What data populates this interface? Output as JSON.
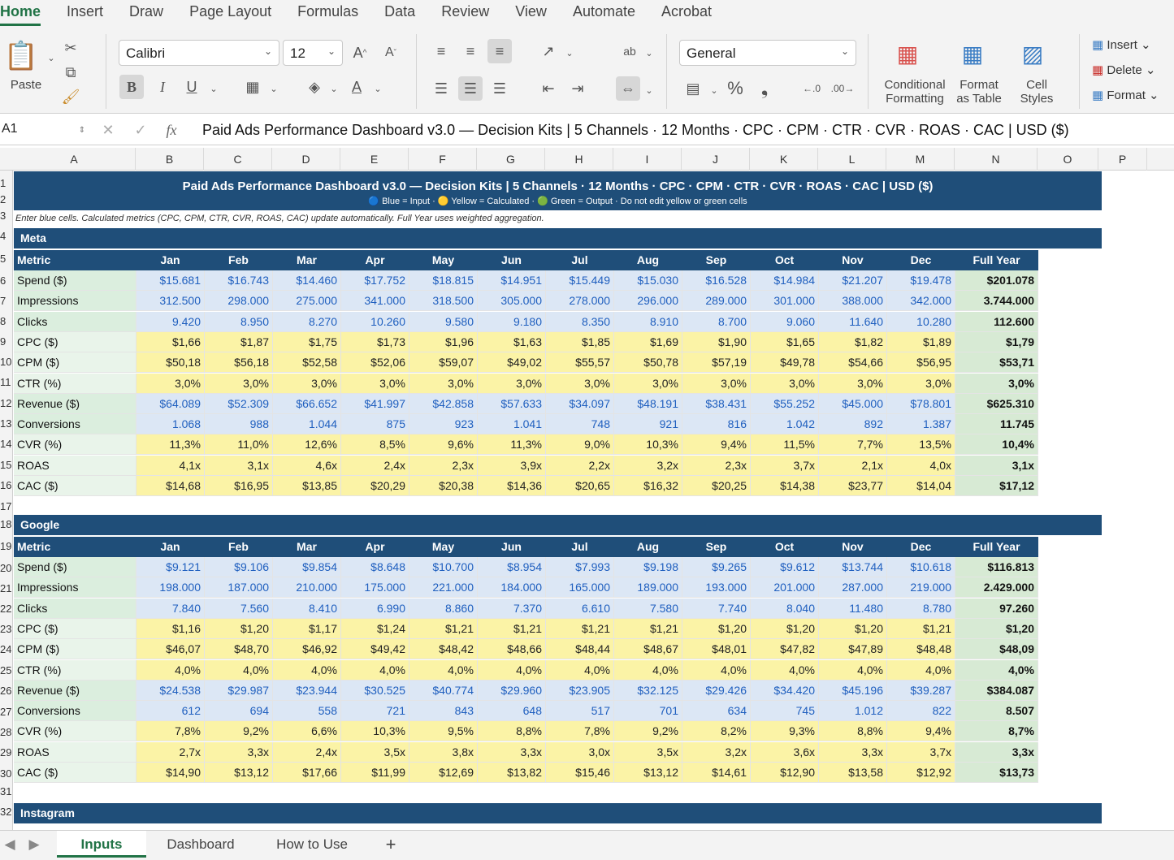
{
  "ribbon_tabs": [
    "Home",
    "Insert",
    "Draw",
    "Page Layout",
    "Formulas",
    "Data",
    "Review",
    "View",
    "Automate",
    "Acrobat"
  ],
  "ribbon": {
    "paste_label": "Paste",
    "font_name": "Calibri",
    "font_size": "12",
    "bold": "B",
    "italic": "I",
    "underline": "U",
    "number_format": "General",
    "conditional_formatting": [
      "Conditional",
      "Formatting"
    ],
    "format_as_table": [
      "Format",
      "as Table"
    ],
    "cell_styles": [
      "Cell",
      "Styles"
    ],
    "insert": "Insert",
    "delete": "Delete",
    "format": "Format"
  },
  "formula_bar": {
    "name_box": "A1",
    "fx": "fx",
    "content": "Paid Ads Performance Dashboard v3.0 — Decision Kits  |  5 Channels · 12 Months · CPC · CPM · CTR · CVR · ROAS · CAC  |  USD ($)"
  },
  "columns": [
    "A",
    "B",
    "C",
    "D",
    "E",
    "F",
    "G",
    "H",
    "I",
    "J",
    "K",
    "L",
    "M",
    "N",
    "O",
    "P"
  ],
  "row_numbers": [
    "1",
    "2",
    "3",
    "4",
    "5",
    "6",
    "7",
    "8",
    "9",
    "10",
    "11",
    "12",
    "13",
    "14",
    "15",
    "16",
    "17",
    "18",
    "19",
    "20",
    "21",
    "22",
    "23",
    "24",
    "25",
    "26",
    "27",
    "28",
    "29",
    "30",
    "31",
    "32"
  ],
  "sheet": {
    "title": "Paid Ads Performance Dashboard v3.0 — Decision Kits  |  5 Channels · 12 Months · CPC · CPM · CTR · CVR · ROAS · CAC  |  USD ($)",
    "legend": "🔵 Blue = Input  ·  🟡 Yellow = Calculated  ·  🟢 Green = Output  ·  Do not edit yellow or green cells",
    "note": "Enter blue cells. Calculated metrics (CPC, CPM, CTR, CVR, ROAS, CAC) update automatically. Full Year uses weighted aggregation.",
    "header_cols": [
      "Metric",
      "Jan",
      "Feb",
      "Mar",
      "Apr",
      "May",
      "Jun",
      "Jul",
      "Aug",
      "Sep",
      "Oct",
      "Nov",
      "Dec",
      "Full Year"
    ],
    "sections": [
      {
        "name": "Meta",
        "rows": [
          {
            "label": "Spend ($)",
            "type": "blue",
            "values": [
              "$15.681",
              "$16.743",
              "$14.460",
              "$17.752",
              "$18.815",
              "$14.951",
              "$15.449",
              "$15.030",
              "$16.528",
              "$14.984",
              "$21.207",
              "$19.478"
            ],
            "total": "$201.078"
          },
          {
            "label": "Impressions",
            "type": "blue",
            "values": [
              "312.500",
              "298.000",
              "275.000",
              "341.000",
              "318.500",
              "305.000",
              "278.000",
              "296.000",
              "289.000",
              "301.000",
              "388.000",
              "342.000"
            ],
            "total": "3.744.000"
          },
          {
            "label": "Clicks",
            "type": "blue",
            "values": [
              "9.420",
              "8.950",
              "8.270",
              "10.260",
              "9.580",
              "9.180",
              "8.350",
              "8.910",
              "8.700",
              "9.060",
              "11.640",
              "10.280"
            ],
            "total": "112.600"
          },
          {
            "label": "CPC ($)",
            "type": "yellow",
            "values": [
              "$1,66",
              "$1,87",
              "$1,75",
              "$1,73",
              "$1,96",
              "$1,63",
              "$1,85",
              "$1,69",
              "$1,90",
              "$1,65",
              "$1,82",
              "$1,89"
            ],
            "total": "$1,79"
          },
          {
            "label": "CPM ($)",
            "type": "yellow",
            "values": [
              "$50,18",
              "$56,18",
              "$52,58",
              "$52,06",
              "$59,07",
              "$49,02",
              "$55,57",
              "$50,78",
              "$57,19",
              "$49,78",
              "$54,66",
              "$56,95"
            ],
            "total": "$53,71"
          },
          {
            "label": "CTR (%)",
            "type": "yellow",
            "values": [
              "3,0%",
              "3,0%",
              "3,0%",
              "3,0%",
              "3,0%",
              "3,0%",
              "3,0%",
              "3,0%",
              "3,0%",
              "3,0%",
              "3,0%",
              "3,0%"
            ],
            "total": "3,0%"
          },
          {
            "label": "Revenue ($)",
            "type": "blue",
            "values": [
              "$64.089",
              "$52.309",
              "$66.652",
              "$41.997",
              "$42.858",
              "$57.633",
              "$34.097",
              "$48.191",
              "$38.431",
              "$55.252",
              "$45.000",
              "$78.801"
            ],
            "total": "$625.310"
          },
          {
            "label": "Conversions",
            "type": "blue",
            "values": [
              "1.068",
              "988",
              "1.044",
              "875",
              "923",
              "1.041",
              "748",
              "921",
              "816",
              "1.042",
              "892",
              "1.387"
            ],
            "total": "11.745"
          },
          {
            "label": "CVR (%)",
            "type": "yellow",
            "values": [
              "11,3%",
              "11,0%",
              "12,6%",
              "8,5%",
              "9,6%",
              "11,3%",
              "9,0%",
              "10,3%",
              "9,4%",
              "11,5%",
              "7,7%",
              "13,5%"
            ],
            "total": "10,4%"
          },
          {
            "label": "ROAS",
            "type": "yellow",
            "values": [
              "4,1x",
              "3,1x",
              "4,6x",
              "2,4x",
              "2,3x",
              "3,9x",
              "2,2x",
              "3,2x",
              "2,3x",
              "3,7x",
              "2,1x",
              "4,0x"
            ],
            "total": "3,1x"
          },
          {
            "label": "CAC ($)",
            "type": "yellow",
            "values": [
              "$14,68",
              "$16,95",
              "$13,85",
              "$20,29",
              "$20,38",
              "$14,36",
              "$20,65",
              "$16,32",
              "$20,25",
              "$14,38",
              "$23,77",
              "$14,04"
            ],
            "total": "$17,12"
          }
        ]
      },
      {
        "name": "Google",
        "rows": [
          {
            "label": "Spend ($)",
            "type": "blue",
            "values": [
              "$9.121",
              "$9.106",
              "$9.854",
              "$8.648",
              "$10.700",
              "$8.954",
              "$7.993",
              "$9.198",
              "$9.265",
              "$9.612",
              "$13.744",
              "$10.618"
            ],
            "total": "$116.813"
          },
          {
            "label": "Impressions",
            "type": "blue",
            "values": [
              "198.000",
              "187.000",
              "210.000",
              "175.000",
              "221.000",
              "184.000",
              "165.000",
              "189.000",
              "193.000",
              "201.000",
              "287.000",
              "219.000"
            ],
            "total": "2.429.000"
          },
          {
            "label": "Clicks",
            "type": "blue",
            "values": [
              "7.840",
              "7.560",
              "8.410",
              "6.990",
              "8.860",
              "7.370",
              "6.610",
              "7.580",
              "7.740",
              "8.040",
              "11.480",
              "8.780"
            ],
            "total": "97.260"
          },
          {
            "label": "CPC ($)",
            "type": "yellow",
            "values": [
              "$1,16",
              "$1,20",
              "$1,17",
              "$1,24",
              "$1,21",
              "$1,21",
              "$1,21",
              "$1,21",
              "$1,20",
              "$1,20",
              "$1,20",
              "$1,21"
            ],
            "total": "$1,20"
          },
          {
            "label": "CPM ($)",
            "type": "yellow",
            "values": [
              "$46,07",
              "$48,70",
              "$46,92",
              "$49,42",
              "$48,42",
              "$48,66",
              "$48,44",
              "$48,67",
              "$48,01",
              "$47,82",
              "$47,89",
              "$48,48"
            ],
            "total": "$48,09"
          },
          {
            "label": "CTR (%)",
            "type": "yellow",
            "values": [
              "4,0%",
              "4,0%",
              "4,0%",
              "4,0%",
              "4,0%",
              "4,0%",
              "4,0%",
              "4,0%",
              "4,0%",
              "4,0%",
              "4,0%",
              "4,0%"
            ],
            "total": "4,0%"
          },
          {
            "label": "Revenue ($)",
            "type": "blue",
            "values": [
              "$24.538",
              "$29.987",
              "$23.944",
              "$30.525",
              "$40.774",
              "$29.960",
              "$23.905",
              "$32.125",
              "$29.426",
              "$34.420",
              "$45.196",
              "$39.287"
            ],
            "total": "$384.087"
          },
          {
            "label": "Conversions",
            "type": "blue",
            "values": [
              "612",
              "694",
              "558",
              "721",
              "843",
              "648",
              "517",
              "701",
              "634",
              "745",
              "1.012",
              "822"
            ],
            "total": "8.507"
          },
          {
            "label": "CVR (%)",
            "type": "yellow",
            "values": [
              "7,8%",
              "9,2%",
              "6,6%",
              "10,3%",
              "9,5%",
              "8,8%",
              "7,8%",
              "9,2%",
              "8,2%",
              "9,3%",
              "8,8%",
              "9,4%"
            ],
            "total": "8,7%"
          },
          {
            "label": "ROAS",
            "type": "yellow",
            "values": [
              "2,7x",
              "3,3x",
              "2,4x",
              "3,5x",
              "3,8x",
              "3,3x",
              "3,0x",
              "3,5x",
              "3,2x",
              "3,6x",
              "3,3x",
              "3,7x"
            ],
            "total": "3,3x"
          },
          {
            "label": "CAC ($)",
            "type": "yellow",
            "values": [
              "$14,90",
              "$13,12",
              "$17,66",
              "$11,99",
              "$12,69",
              "$13,82",
              "$15,46",
              "$13,12",
              "$14,61",
              "$12,90",
              "$13,58",
              "$12,92"
            ],
            "total": "$13,73"
          }
        ]
      },
      {
        "name": "Instagram",
        "rows": []
      }
    ]
  },
  "sheet_tabs": [
    "Inputs",
    "Dashboard",
    "How to Use"
  ],
  "add_sheet": "+",
  "colors": {
    "header": "#1f4e79",
    "input": "#dce7f5",
    "calculated": "#fbf3a6",
    "output": "#d7ead4",
    "accent": "#217346"
  }
}
